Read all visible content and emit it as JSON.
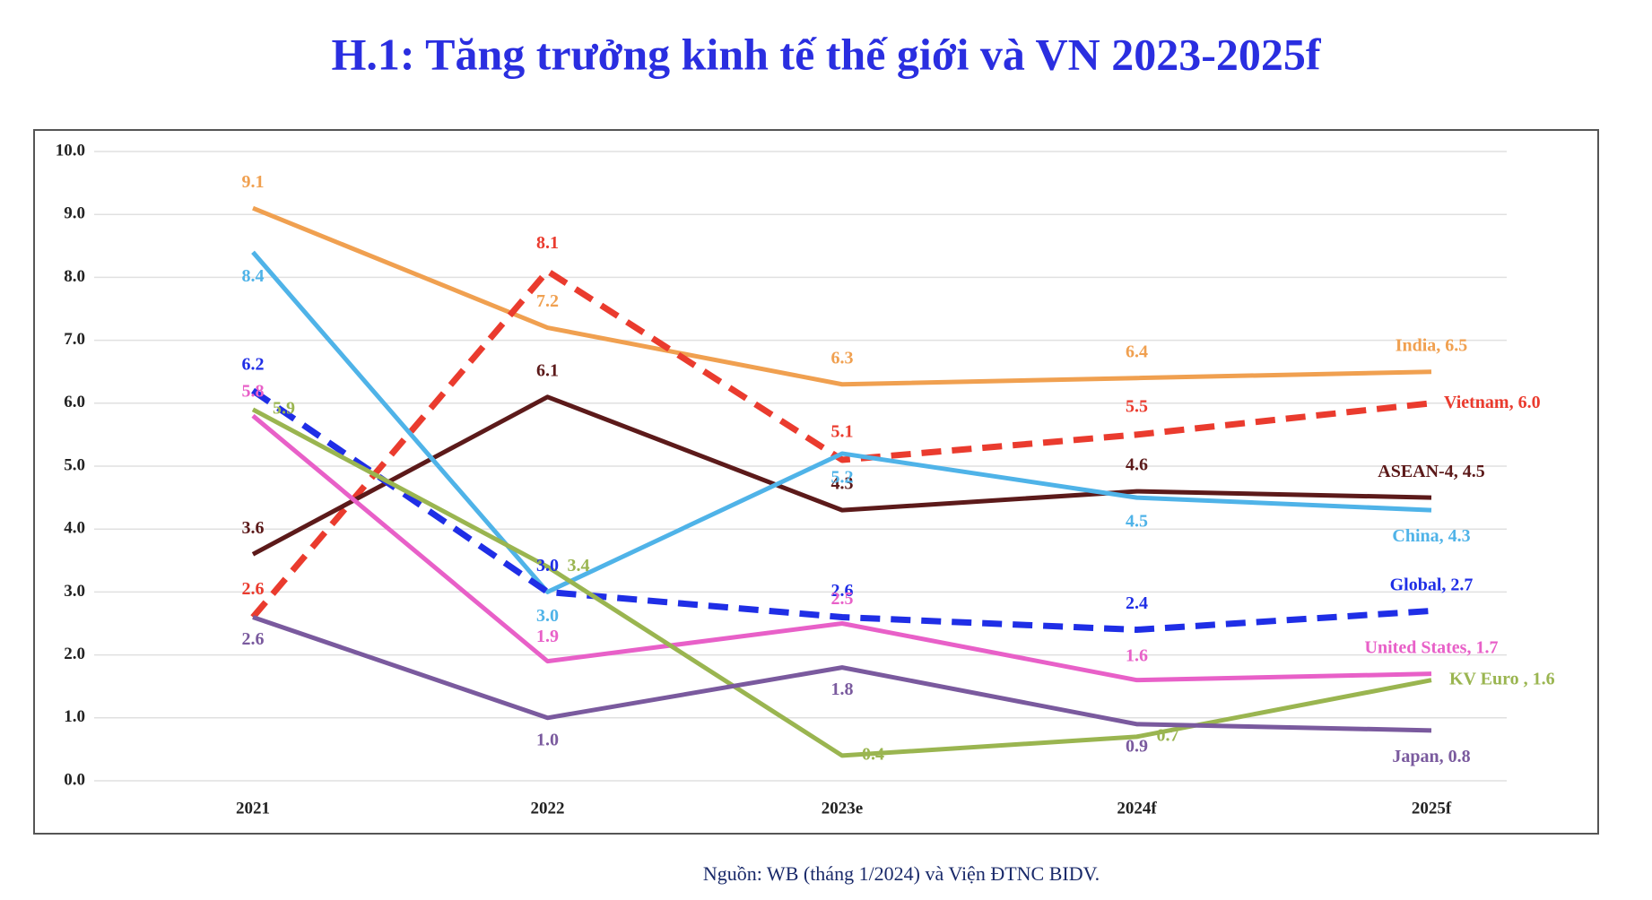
{
  "chart_data": {
    "type": "line",
    "title": "H.1: Tăng trưởng kinh tế thế giới và VN 2023-2025f",
    "source": "Nguồn: WB (tháng 1/2024) và Viện ĐTNC BIDV.",
    "categories": [
      "2021",
      "2022",
      "2023e",
      "2024f",
      "2025f"
    ],
    "ylim": [
      0,
      10
    ],
    "yticks": [
      {
        "value": 0,
        "label": "0.0"
      },
      {
        "value": 1,
        "label": "1.0"
      },
      {
        "value": 2,
        "label": "2.0"
      },
      {
        "value": 3,
        "label": "3.0"
      },
      {
        "value": 4,
        "label": "4.0"
      },
      {
        "value": 5,
        "label": "5.0"
      },
      {
        "value": 6,
        "label": "6.0"
      },
      {
        "value": 7,
        "label": "7.0"
      },
      {
        "value": 8,
        "label": "8.0"
      },
      {
        "value": 9,
        "label": "9.0"
      },
      {
        "value": 10,
        "label": "10.0"
      }
    ],
    "grid": true,
    "series": [
      {
        "name": "India",
        "color": "#f0a050",
        "values": [
          9.1,
          7.2,
          6.3,
          6.4,
          6.5
        ],
        "value_labels": [
          "9.1",
          "7.2",
          "6.3",
          "6.4",
          ", 6.5"
        ]
      },
      {
        "name": "Vietnam",
        "color": "#ea3b2e",
        "dashed": true,
        "values": [
          2.6,
          8.1,
          5.1,
          5.5,
          6.0
        ],
        "value_labels": [
          "2.6",
          "8.1",
          "5.1",
          "5.5",
          ", 6.0"
        ]
      },
      {
        "name": "ASEAN-4",
        "color": "#5c1a1a",
        "values": [
          3.6,
          6.1,
          4.3,
          4.6,
          4.5
        ],
        "value_labels": [
          "3.6",
          "6.1",
          "4.3",
          "4.6",
          ", 4.5"
        ]
      },
      {
        "name": "China",
        "color": "#4fb3e8",
        "values": [
          8.4,
          3.0,
          5.2,
          4.5,
          4.3
        ],
        "value_labels": [
          "8.4",
          "3.0",
          "5.2",
          "4.5",
          ", 4.3"
        ]
      },
      {
        "name": "Global",
        "color": "#1f2ee6",
        "dashed": true,
        "values": [
          6.2,
          3.0,
          2.6,
          2.4,
          2.7
        ],
        "value_labels": [
          "6.2",
          "3.0",
          "2.6",
          "2.4",
          ", 2.7"
        ]
      },
      {
        "name": "United States",
        "color": "#e860c8",
        "values": [
          5.8,
          1.9,
          2.5,
          1.6,
          1.7
        ],
        "value_labels": [
          "5.8",
          "1.9",
          "2.5",
          "1.6",
          ", 1.7"
        ]
      },
      {
        "name": "KV Euro ",
        "color": "#9ab550",
        "values": [
          5.9,
          3.4,
          0.4,
          0.7,
          1.6
        ],
        "value_labels": [
          "5.9",
          "3.4",
          "0.4",
          "0.7",
          ", 1.6"
        ]
      },
      {
        "name": "Japan",
        "color": "#7a5a9e",
        "values": [
          2.6,
          1.0,
          1.8,
          0.9,
          0.8
        ],
        "value_labels": [
          "2.6",
          "1.0",
          "1.8",
          "0.9",
          ", 0.8"
        ]
      }
    ]
  }
}
